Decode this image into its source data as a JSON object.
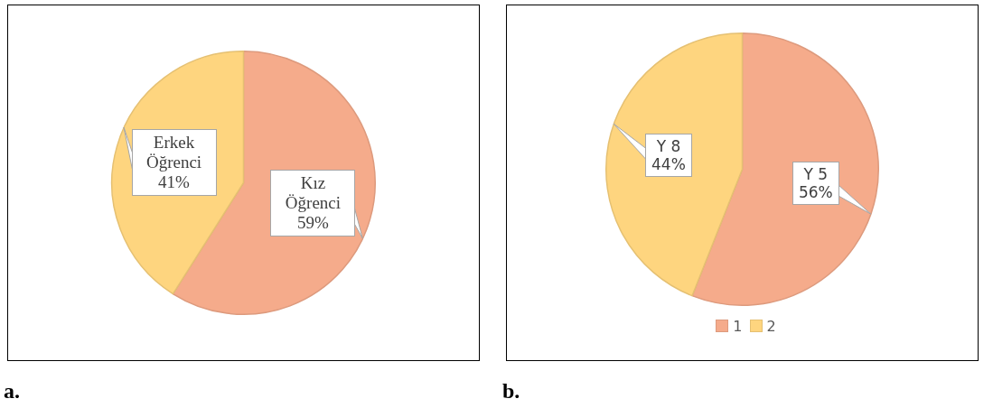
{
  "chart_data": [
    {
      "type": "pie",
      "title": "a.",
      "categories": [
        "Kız Öğrenci",
        "Erkek Öğrenci"
      ],
      "values": [
        59,
        41
      ],
      "colors": [
        "#f5ab8b",
        "#fed57f"
      ],
      "value_labels": [
        "59%",
        "41%"
      ],
      "legend": false
    },
    {
      "type": "pie",
      "title": "b.",
      "categories": [
        "1",
        "2"
      ],
      "values": [
        56,
        44
      ],
      "colors": [
        "#f5ab8b",
        "#fed57f"
      ],
      "value_labels": [
        "Y 5\n56%",
        "Y 8\n44%"
      ],
      "legend": "bottom"
    }
  ]
}
